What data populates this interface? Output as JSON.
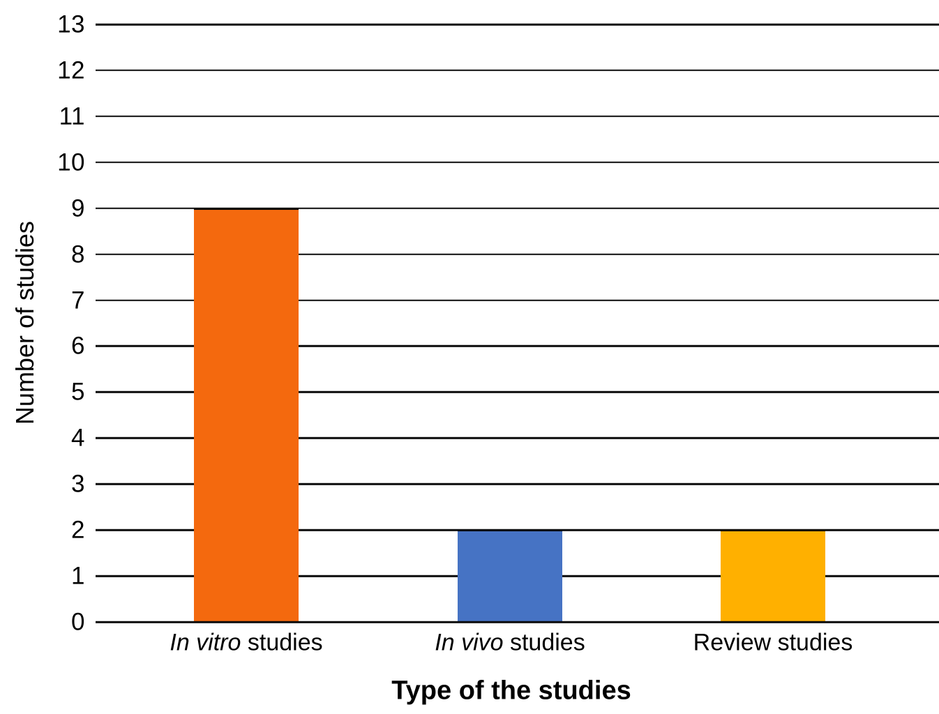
{
  "chart_data": {
    "type": "bar",
    "title": "",
    "xlabel": "Type of the studies",
    "ylabel": "Number of studies",
    "categories": [
      "In vitro studies",
      "In vivo studies",
      "Review studies"
    ],
    "category_parts": [
      {
        "italic": "In vitro",
        "rest": " studies"
      },
      {
        "italic": "In vivo",
        "rest": " studies"
      },
      {
        "italic": "",
        "rest": "Review studies"
      }
    ],
    "values": [
      9,
      2,
      2
    ],
    "bar_colors": [
      "#F4690E",
      "#4673C4",
      "#FFB000"
    ],
    "ylim": [
      0,
      13
    ],
    "ytick_step": 1,
    "yticks": [
      0,
      1,
      2,
      3,
      4,
      5,
      6,
      7,
      8,
      9,
      10,
      11,
      12,
      13
    ],
    "grid": "horizontal",
    "legend": "none",
    "axis_line_color": "#0a0a0a",
    "text_color": "#000000",
    "background": "#ffffff"
  }
}
